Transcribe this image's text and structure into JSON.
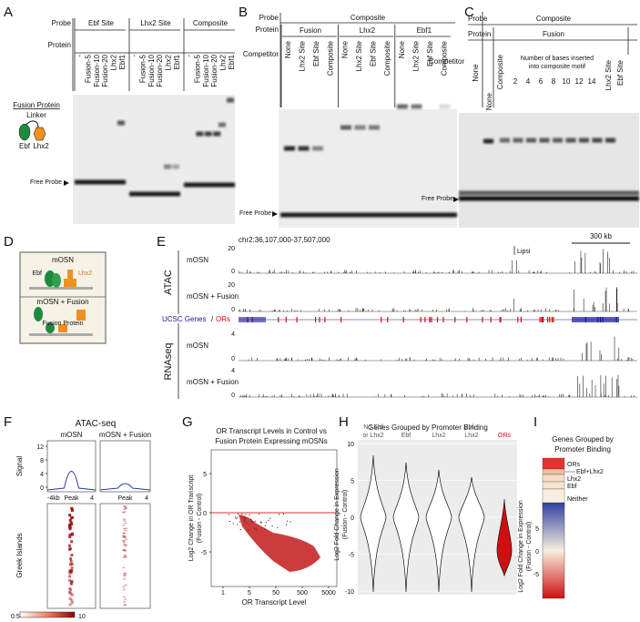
{
  "panels": {
    "A": {
      "letter": "A",
      "probe_label": "Probe",
      "protein_label": "Protein",
      "groups": [
        "Ebf Site",
        "Lhx2 Site",
        "Composite"
      ],
      "lanes": [
        "-",
        "Fusion-5",
        "Fusion-10",
        "Fusion-20",
        "Lhx2",
        "Ebf1"
      ],
      "legend_title": "Fusion Protein",
      "linker": "Linker",
      "ebf": "Ebf",
      "lhx2": "Lhx2",
      "free_probe": "Free Probe"
    },
    "B": {
      "letter": "B",
      "probe_label": "Probe",
      "probe": "Composite",
      "protein_label": "Protein",
      "proteins": [
        "Fusion",
        "Lhx2",
        "Ebf1"
      ],
      "competitor_label": "Competitor",
      "lanes": [
        "None",
        "Lhx2 Site",
        "Ebf Site",
        "Composite"
      ],
      "free_probe": "Free Probe"
    },
    "C": {
      "letter": "C",
      "probe_label": "Probe",
      "probe": "Composite",
      "protein_label": "Protein",
      "protein": "Fusion",
      "competitor_label": "Competitor",
      "lanes": [
        "None",
        "Composite",
        "None"
      ],
      "bases_title": [
        "Number of bases inserted",
        "into composite motif"
      ],
      "bases": [
        "2",
        "4",
        "6",
        "8",
        "10",
        "12",
        "14"
      ],
      "sites": [
        "Lhx2 Site",
        "Ebf Site"
      ],
      "free_probe": "Free Probe"
    },
    "D": {
      "letter": "D",
      "top": "mOSN",
      "ebf": "Ebf",
      "lhx2": "Lhx2",
      "bottom": "mOSN + Fusion",
      "fusion": "Fusion Protein"
    },
    "E": {
      "letter": "E",
      "locus": "chr2:36,107,000-37,507,000",
      "scale": "300 kb",
      "gene": "Lipsi",
      "atac": "ATAC",
      "rnaseq": "RNAseq",
      "tracks": [
        "mOSN",
        "mOSN + Fusion"
      ],
      "atac_max": "20",
      "rna_max": "4",
      "zero": "0",
      "genes": "UCSC Genes",
      "slash": "/",
      "ors": "ORs"
    },
    "F": {
      "letter": "F",
      "title": "ATAC-seq",
      "columns": [
        "mOSN",
        "mOSN + Fusion"
      ],
      "signal": "Signal",
      "yticks": [
        "12",
        "8",
        "4",
        "0"
      ],
      "x_left": "-4kb",
      "x_mid": "Peak",
      "x_right": "4",
      "rows": "Greek Islands",
      "cbar": [
        "0.5",
        "10"
      ]
    },
    "G": {
      "letter": "G",
      "title": [
        "OR Transcript Levels in Control vs",
        "Fusion Protein Expressing mOSNs"
      ],
      "ylabel": [
        "Log2 Change in OR Transcript",
        "(Fusion - Control)"
      ],
      "xlabel": "OR Transcript Level",
      "yticks": [
        "5",
        "0",
        "-5"
      ],
      "xticks": [
        "1",
        "5",
        "50",
        "500",
        "5000"
      ]
    },
    "H": {
      "letter": "H",
      "title": "Genes Grouped by Promoter Binding",
      "groups": [
        [
          "No Ebf",
          "or Lhx2"
        ],
        [
          "Ebf"
        ],
        [
          "Lhx2"
        ],
        [
          "Ebf +",
          "Lhx2"
        ],
        [
          "ORs"
        ]
      ],
      "yticks": [
        "10",
        "5",
        "0",
        "-5",
        "-10"
      ],
      "ylabel": [
        "Log2 Fold Change in Expression",
        "(Fusion - Control)"
      ]
    },
    "I": {
      "letter": "I",
      "title": [
        "Genes Grouped by",
        "Promoter Binding"
      ],
      "rows": [
        "ORs",
        "Ebf+Lhx2",
        "Lhx2",
        "Ebf",
        "Neither"
      ],
      "cticks": [
        "5",
        "0",
        "-5"
      ],
      "ylabel": [
        "Log2 Fold Change in Expression",
        "(Fusion - Control)"
      ]
    }
  }
}
